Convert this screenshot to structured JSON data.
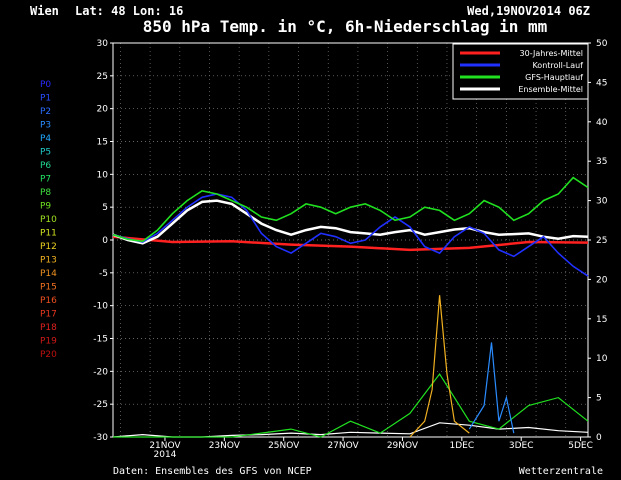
{
  "header": {
    "station": "Wien",
    "location": "Lat: 48 Lon: 16",
    "date": "Wed,19NOV2014 06Z",
    "title": "850 hPa Temp. in °C, 6h-Niederschlag in mm"
  },
  "footer": {
    "source": "Daten: Ensembles des GFS von NCEP",
    "brand": "Wetterzentrale"
  },
  "legend": [
    {
      "label": "30-Jahres-Mittel",
      "color": "#ff2020"
    },
    {
      "label": "Kontroll-Lauf",
      "color": "#2030ff"
    },
    {
      "label": "GFS-Hauptlauf",
      "color": "#20e020"
    },
    {
      "label": "Ensemble-Mittel",
      "color": "#ffffff"
    }
  ],
  "members": [
    {
      "label": "P0",
      "color": "#2a2aff"
    },
    {
      "label": "P1",
      "color": "#2a4cff"
    },
    {
      "label": "P2",
      "color": "#2a6cff"
    },
    {
      "label": "P3",
      "color": "#2a8cff"
    },
    {
      "label": "P4",
      "color": "#20a8ff"
    },
    {
      "label": "P5",
      "color": "#20c8c8"
    },
    {
      "label": "P6",
      "color": "#20d890"
    },
    {
      "label": "P7",
      "color": "#20e060"
    },
    {
      "label": "P8",
      "color": "#40e040"
    },
    {
      "label": "P9",
      "color": "#70e020"
    },
    {
      "label": "P10",
      "color": "#a0e020"
    },
    {
      "label": "P11",
      "color": "#d0e020"
    },
    {
      "label": "P12",
      "color": "#e8d020"
    },
    {
      "label": "P13",
      "color": "#f0b020"
    },
    {
      "label": "P14",
      "color": "#f09020"
    },
    {
      "label": "P15",
      "color": "#f07020"
    },
    {
      "label": "P16",
      "color": "#f05020"
    },
    {
      "label": "P17",
      "color": "#e83820"
    },
    {
      "label": "P18",
      "color": "#e02020"
    },
    {
      "label": "P19",
      "color": "#d01818"
    },
    {
      "label": "P20",
      "color": "#c01010"
    }
  ],
  "chart_data": {
    "type": "line",
    "xlim": [
      0,
      16
    ],
    "x_unit": "days from 19NOV2014 06Z",
    "x_ticks": [
      {
        "x": 1.75,
        "label": "21NOV",
        "sub": "2014"
      },
      {
        "x": 3.75,
        "label": "23NOV",
        "sub": ""
      },
      {
        "x": 5.75,
        "label": "25NOV",
        "sub": ""
      },
      {
        "x": 7.75,
        "label": "27NOV",
        "sub": ""
      },
      {
        "x": 9.75,
        "label": "29NOV",
        "sub": ""
      },
      {
        "x": 11.75,
        "label": "1DEC",
        "sub": ""
      },
      {
        "x": 13.75,
        "label": "3DEC",
        "sub": ""
      },
      {
        "x": 15.75,
        "label": "5DEC",
        "sub": ""
      }
    ],
    "y_left": {
      "label": "850 hPa Temp. °C",
      "lim": [
        -30,
        30
      ],
      "ticks": [
        30,
        25,
        20,
        15,
        10,
        5,
        0,
        -5,
        -10,
        -15,
        -20,
        -25,
        -30
      ]
    },
    "y_right": {
      "label": "6h-Niederschlag mm",
      "lim": [
        0,
        50
      ],
      "ticks": [
        50,
        45,
        40,
        35,
        30,
        25,
        20,
        15,
        10,
        5,
        0
      ]
    },
    "grid": true,
    "legend_position": "top-right",
    "temperature_series": [
      {
        "name": "30-Jahres-Mittel",
        "color": "#ff2020",
        "x": [
          0,
          2,
          4,
          6,
          8,
          10,
          12,
          14,
          16
        ],
        "y": [
          0.5,
          -0.3,
          -0.2,
          -0.7,
          -1.0,
          -1.5,
          -1.2,
          -0.3,
          -0.4
        ]
      },
      {
        "name": "Ensemble-Mittel",
        "color": "#ffffff",
        "x": [
          0,
          0.5,
          1,
          1.5,
          2,
          2.5,
          3,
          3.5,
          4,
          4.5,
          5,
          5.5,
          6,
          6.5,
          7,
          7.5,
          8,
          8.5,
          9,
          9.5,
          10,
          10.5,
          11,
          11.5,
          12,
          12.5,
          13,
          13.5,
          14,
          14.5,
          15,
          15.5,
          16
        ],
        "y": [
          0.8,
          0.0,
          -0.5,
          0.5,
          2.5,
          4.5,
          5.8,
          6.0,
          5.5,
          4.0,
          2.5,
          1.5,
          0.8,
          1.5,
          2.0,
          1.8,
          1.2,
          1.0,
          0.8,
          1.2,
          1.5,
          0.8,
          1.2,
          1.6,
          1.8,
          1.2,
          0.8,
          0.9,
          1.0,
          0.5,
          0.2,
          0.6,
          0.5
        ]
      },
      {
        "name": "Kontroll-Lauf",
        "color": "#2030ff",
        "x": [
          0,
          0.5,
          1,
          1.5,
          2,
          2.5,
          3,
          3.5,
          4,
          4.5,
          5,
          5.5,
          6,
          6.5,
          7,
          7.5,
          8,
          8.5,
          9,
          9.5,
          10,
          10.5,
          11,
          11.5,
          12,
          12.5,
          13,
          13.5,
          14,
          14.5,
          15,
          15.5,
          16
        ],
        "y": [
          0.8,
          0.2,
          -0.3,
          1.0,
          3.0,
          5.0,
          6.5,
          7.0,
          6.5,
          4.5,
          1.0,
          -1.0,
          -2.0,
          -0.5,
          1.0,
          0.5,
          -0.5,
          0.0,
          2.0,
          3.5,
          2.0,
          -1.0,
          -2.0,
          0.5,
          2.0,
          1.0,
          -1.5,
          -2.5,
          -1.0,
          0.5,
          -2.0,
          -4.0,
          -5.5
        ]
      },
      {
        "name": "GFS-Hauptlauf",
        "color": "#20e020",
        "x": [
          0,
          0.5,
          1,
          1.5,
          2,
          2.5,
          3,
          3.5,
          4,
          4.5,
          5,
          5.5,
          6,
          6.5,
          7,
          7.5,
          8,
          8.5,
          9,
          9.5,
          10,
          10.5,
          11,
          11.5,
          12,
          12.5,
          13,
          13.5,
          14,
          14.5,
          15,
          15.5,
          16
        ],
        "y": [
          0.8,
          0.1,
          -0.2,
          1.5,
          4.0,
          6.0,
          7.5,
          7.0,
          6.0,
          5.0,
          3.5,
          3.0,
          4.0,
          5.5,
          5.0,
          4.0,
          5.0,
          5.5,
          4.5,
          3.0,
          3.5,
          5.0,
          4.5,
          3.0,
          4.0,
          6.0,
          5.0,
          3.0,
          4.0,
          6.0,
          7.0,
          9.5,
          8.0
        ]
      }
    ],
    "precipitation_series": [
      {
        "name": "Ensemble-Mittel",
        "color": "#ffffff",
        "x": [
          0,
          1,
          2,
          3,
          4,
          5,
          6,
          7,
          8,
          9,
          10,
          11,
          12,
          13,
          14,
          15,
          16
        ],
        "y": [
          0,
          0.3,
          0,
          0,
          0.2,
          0.3,
          0.5,
          0.3,
          0.6,
          0.5,
          0.4,
          1.8,
          1.5,
          1.0,
          1.2,
          0.8,
          0.6
        ]
      },
      {
        "name": "GFS-Hauptlauf",
        "color": "#20e020",
        "x": [
          0,
          1,
          2,
          3,
          4,
          5,
          6,
          7,
          8,
          9,
          10,
          11,
          12,
          13,
          14,
          15,
          16
        ],
        "y": [
          0,
          0,
          0,
          0,
          0,
          0.5,
          1.0,
          0,
          2.0,
          0.5,
          3.0,
          8.0,
          2.0,
          1.0,
          4.0,
          5.0,
          2.0
        ]
      },
      {
        "name": "P13",
        "color": "#f0b020",
        "x": [
          10,
          10.5,
          10.75,
          11,
          11.25,
          11.5,
          12
        ],
        "y": [
          0,
          2.0,
          6.0,
          18.0,
          8.0,
          2.0,
          0.5
        ]
      },
      {
        "name": "P3",
        "color": "#2a8cff",
        "x": [
          12,
          12.5,
          12.75,
          13,
          13.25,
          13.5
        ],
        "y": [
          1.0,
          4.0,
          12.0,
          2.0,
          5.0,
          0.5
        ]
      }
    ]
  }
}
